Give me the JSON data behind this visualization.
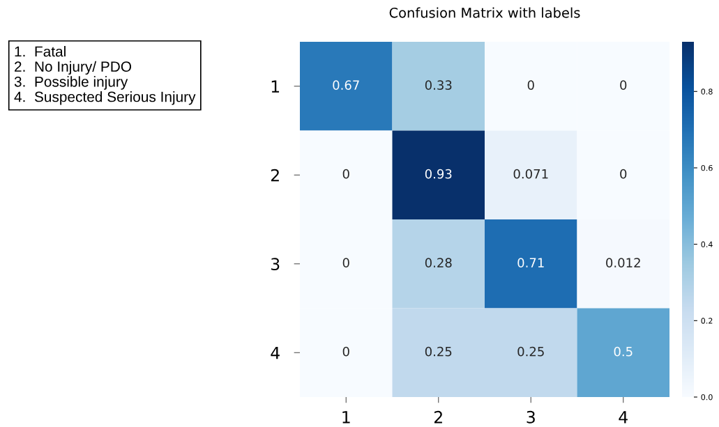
{
  "chart_data": {
    "type": "heatmap",
    "title": "Confusion Matrix with labels",
    "categories": [
      "1",
      "2",
      "3",
      "4"
    ],
    "y_categories": [
      "1",
      "2",
      "3",
      "4"
    ],
    "cells": [
      [
        0.67,
        0.33,
        0,
        0
      ],
      [
        0,
        0.93,
        0.071,
        0
      ],
      [
        0,
        0.28,
        0.71,
        0.012
      ],
      [
        0,
        0.25,
        0.25,
        0.5
      ]
    ],
    "data_labels": true,
    "clim": [
      0,
      0.93
    ],
    "cticks": [
      {
        "value": 0,
        "label": "0.0"
      },
      {
        "value": 0.2,
        "label": "0.2"
      },
      {
        "value": 0.4,
        "label": "0.4"
      },
      {
        "value": 0.6,
        "label": "0.6"
      },
      {
        "value": 0.8,
        "label": "0.8"
      }
    ],
    "annotations": [
      "1.  Fatal",
      "2.  No Injury/ PDO",
      "3.  Possible injury",
      "4.  Suspected Serious Injury"
    ]
  }
}
